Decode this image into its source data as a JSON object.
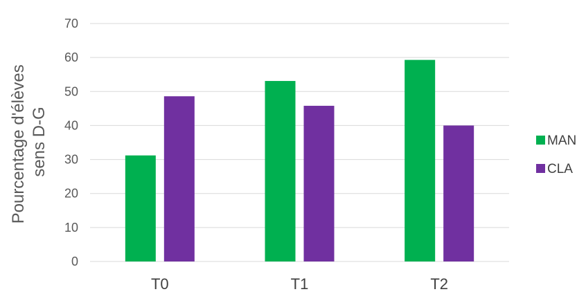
{
  "chart_data": {
    "type": "bar",
    "title": "",
    "ylabel": [
      "Pourcentage d'élèves",
      "sens D-G"
    ],
    "xlabel": "",
    "categories": [
      "T0",
      "T1",
      "T2"
    ],
    "series": [
      {
        "name": "MAN",
        "color": "#00b050",
        "values": [
          31.2,
          53.1,
          59.3
        ]
      },
      {
        "name": "CLA",
        "color": "#7030a0",
        "values": [
          48.6,
          45.8,
          40.0
        ]
      }
    ],
    "ylim": [
      0,
      70
    ],
    "yticks": [
      0,
      10,
      20,
      30,
      40,
      50,
      60,
      70
    ],
    "grid": true,
    "legend": "right"
  }
}
